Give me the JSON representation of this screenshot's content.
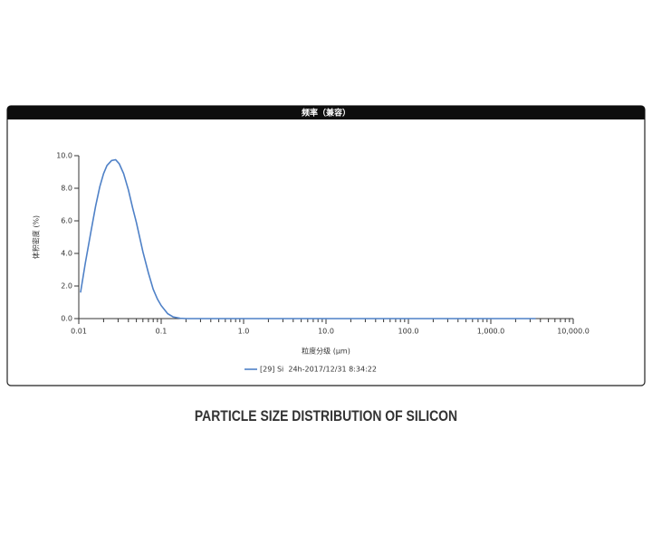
{
  "chart_data": {
    "type": "line",
    "title": "频率（兼容）",
    "xlabel": "粒度分级 (μm)",
    "ylabel": "体积密度 (%)",
    "xscale": "log",
    "x": [
      0.0105,
      0.012,
      0.014,
      0.016,
      0.018,
      0.02,
      0.022,
      0.025,
      0.028,
      0.031,
      0.035,
      0.04,
      0.045,
      0.05,
      0.06,
      0.07,
      0.08,
      0.09,
      0.1,
      0.12,
      0.14,
      0.17,
      0.2,
      0.3,
      1,
      10,
      100,
      1000,
      3500
    ],
    "series": [
      {
        "name": "[29] Si  24h-2017/12/31 8:34:22",
        "color": "#4f81c7",
        "values": [
          1.6,
          3.4,
          5.3,
          6.9,
          8.1,
          8.9,
          9.4,
          9.7,
          9.75,
          9.5,
          8.9,
          7.9,
          6.8,
          5.9,
          4.1,
          2.8,
          1.8,
          1.2,
          0.8,
          0.3,
          0.1,
          0.02,
          0,
          0,
          0,
          0,
          0,
          0,
          0
        ]
      }
    ],
    "xlim": [
      0.01,
      10000
    ],
    "ylim": [
      0,
      10
    ],
    "xticks": [
      0.01,
      0.1,
      {
        "value": 1,
        "label": "1.0"
      },
      {
        "value": 10,
        "label": "10.0"
      },
      {
        "value": 100,
        "label": "100.0"
      },
      {
        "value": 1000,
        "label": "1,000.0"
      },
      {
        "value": 10000,
        "label": "10,000.0"
      }
    ],
    "xminorticks": [
      0.02,
      0.03,
      0.04,
      0.05,
      0.06,
      0.07,
      0.08,
      0.09,
      0.2,
      0.3,
      0.4,
      0.5,
      0.6,
      0.7,
      0.8,
      0.9,
      2,
      3,
      4,
      5,
      6,
      7,
      8,
      9,
      20,
      30,
      40,
      50,
      60,
      70,
      80,
      90,
      200,
      300,
      400,
      500,
      600,
      700,
      800,
      900,
      2000,
      3000,
      4000,
      5000,
      6000,
      7000,
      8000,
      9000
    ],
    "yticks": [
      {
        "value": 0,
        "label": "0.0"
      },
      {
        "value": 2,
        "label": "2.0"
      },
      {
        "value": 4,
        "label": "4.0"
      },
      {
        "value": 6,
        "label": "6.0"
      },
      {
        "value": 8,
        "label": "8.0"
      },
      {
        "value": 10,
        "label": "10.0"
      }
    ],
    "legend": "bottom"
  },
  "caption": "PARTICLE SIZE DISTRIBUTION OF SILICON"
}
